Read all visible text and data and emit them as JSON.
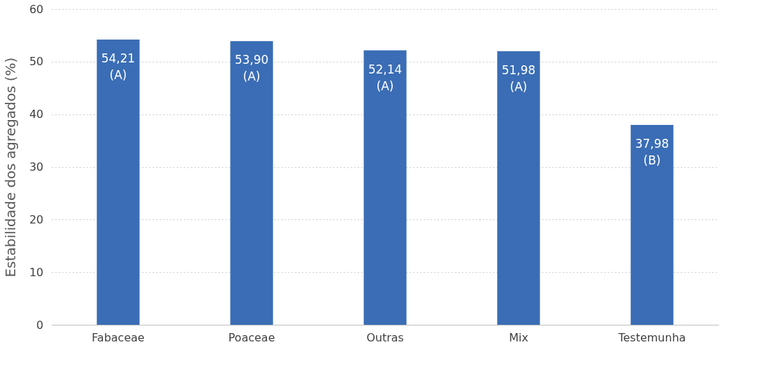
{
  "chart_data": {
    "type": "bar",
    "ylabel": "Estabilidade dos agregados (%)",
    "categories": [
      "Fabaceae",
      "Poaceae",
      "Outras",
      "Mix",
      "Testemunha"
    ],
    "values": [
      54.21,
      53.9,
      52.14,
      51.98,
      37.98
    ],
    "value_labels": [
      "54,21\n(A)",
      "53,90\n(A)",
      "52,14\n(A)",
      "51,98\n(A)",
      "37,98\n(B)"
    ],
    "color": "#3a6db5",
    "ylim": [
      0,
      60
    ],
    "yticks": [
      0,
      10,
      20,
      30,
      40,
      50,
      60
    ],
    "grid": "y"
  }
}
